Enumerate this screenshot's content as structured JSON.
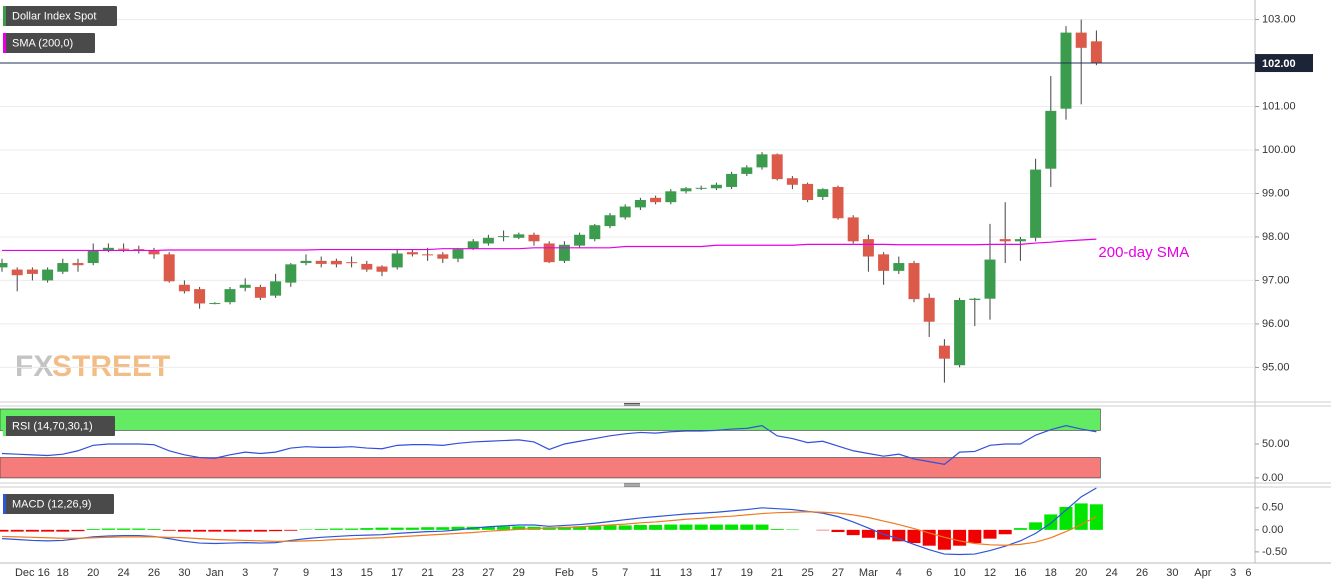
{
  "x_axis": {
    "categories": [
      null,
      null,
      "Dec 16",
      null,
      "18",
      null,
      "20",
      null,
      "24",
      null,
      "26",
      null,
      "30",
      null,
      "Jan",
      null,
      "3",
      null,
      "7",
      null,
      "9",
      null,
      "13",
      null,
      "15",
      null,
      "17",
      null,
      "21",
      null,
      "23",
      null,
      "27",
      null,
      "29",
      null,
      null,
      "Feb",
      null,
      "5",
      null,
      "7",
      null,
      "11",
      null,
      "13",
      null,
      "17",
      null,
      "19",
      null,
      "21",
      null,
      "25",
      null,
      "27",
      null,
      "Mar",
      null,
      "4",
      null,
      "6",
      null,
      "10",
      null,
      "12",
      null,
      "16",
      null,
      "18",
      null,
      "20",
      null,
      "24",
      null,
      "26",
      null,
      "30",
      null,
      "Apr",
      null,
      "3",
      "6"
    ]
  },
  "watermark": {
    "fx": "FX",
    "street": "STREET"
  },
  "chart_data": [
    {
      "type": "candlestick",
      "title": "Dollar Index Spot",
      "up_color": "#3c9c4e",
      "down_color": "#dc5a4a",
      "open": [
        97.3,
        97.25,
        97.25,
        97.0,
        97.2,
        97.4,
        97.4,
        97.7,
        97.73,
        97.72,
        97.68,
        97.6,
        96.9,
        96.8,
        96.47,
        96.5,
        96.83,
        96.85,
        96.65,
        96.95,
        97.4,
        97.45,
        97.45,
        97.42,
        97.38,
        97.32,
        97.3,
        97.65,
        97.6,
        97.6,
        97.5,
        97.73,
        97.85,
        98.0,
        97.98,
        98.05,
        97.85,
        97.45,
        97.8,
        97.95,
        98.25,
        98.45,
        98.68,
        98.9,
        98.8,
        99.05,
        99.12,
        99.12,
        99.15,
        99.45,
        99.6,
        99.9,
        99.35,
        99.22,
        98.92,
        99.15,
        98.45,
        97.95,
        97.6,
        97.22,
        97.4,
        96.6,
        95.5,
        95.05,
        96.55,
        96.58,
        97.95,
        97.9,
        97.98,
        99.57,
        100.95,
        102.7,
        102.5
      ],
      "high": [
        97.5,
        97.3,
        97.3,
        97.3,
        97.5,
        97.5,
        97.85,
        97.85,
        97.85,
        97.8,
        97.75,
        97.65,
        97.0,
        96.85,
        96.5,
        96.85,
        97.05,
        96.9,
        97.15,
        97.4,
        97.6,
        97.55,
        97.5,
        97.55,
        97.45,
        97.35,
        97.7,
        97.7,
        97.75,
        97.65,
        97.75,
        97.95,
        98.05,
        98.15,
        98.1,
        98.1,
        97.9,
        97.9,
        98.1,
        98.3,
        98.55,
        98.75,
        98.9,
        98.95,
        99.1,
        99.15,
        99.18,
        99.25,
        99.5,
        99.65,
        99.95,
        99.92,
        99.4,
        99.25,
        99.12,
        99.18,
        98.5,
        98.05,
        97.65,
        97.55,
        97.45,
        96.7,
        95.65,
        96.6,
        96.6,
        98.3,
        98.8,
        98.0,
        99.8,
        101.7,
        102.85,
        103.0,
        102.75
      ],
      "low": [
        97.2,
        96.75,
        97.0,
        96.95,
        97.15,
        97.2,
        97.35,
        97.65,
        97.65,
        97.62,
        97.5,
        96.95,
        96.7,
        96.35,
        96.45,
        96.45,
        96.75,
        96.55,
        96.6,
        96.85,
        97.35,
        97.3,
        97.3,
        97.3,
        97.2,
        97.1,
        97.25,
        97.55,
        97.45,
        97.4,
        97.42,
        97.7,
        97.8,
        97.9,
        97.95,
        97.8,
        97.4,
        97.4,
        97.75,
        97.9,
        98.2,
        98.4,
        98.62,
        98.75,
        98.75,
        99.0,
        99.08,
        99.08,
        99.1,
        99.4,
        99.55,
        99.3,
        99.1,
        98.8,
        98.85,
        98.4,
        97.85,
        97.2,
        96.9,
        97.15,
        96.5,
        95.7,
        94.65,
        95.0,
        95.95,
        96.1,
        97.4,
        97.45,
        97.9,
        99.15,
        100.7,
        101.05,
        101.95
      ],
      "close": [
        97.4,
        97.12,
        97.15,
        97.25,
        97.4,
        97.35,
        97.7,
        97.75,
        97.72,
        97.7,
        97.6,
        96.98,
        96.75,
        96.47,
        96.48,
        96.8,
        96.9,
        96.6,
        96.98,
        97.37,
        97.45,
        97.38,
        97.37,
        97.41,
        97.25,
        97.2,
        97.62,
        97.6,
        97.58,
        97.5,
        97.72,
        97.9,
        97.98,
        98.02,
        98.06,
        97.9,
        97.42,
        97.82,
        98.05,
        98.27,
        98.5,
        98.7,
        98.85,
        98.8,
        99.05,
        99.12,
        99.13,
        99.2,
        99.45,
        99.6,
        99.9,
        99.33,
        99.2,
        98.85,
        99.1,
        98.43,
        97.9,
        97.55,
        97.22,
        97.4,
        96.57,
        96.05,
        95.2,
        96.55,
        96.58,
        97.48,
        97.9,
        97.95,
        99.55,
        100.9,
        102.7,
        102.35,
        102.0
      ],
      "sma": {
        "name": "SMA (200,0)",
        "color": "#e600e6",
        "annotation": "200-day SMA",
        "values": [
          97.69,
          97.69,
          97.69,
          97.69,
          97.69,
          97.69,
          97.69,
          97.69,
          97.69,
          97.69,
          97.69,
          97.7,
          97.7,
          97.7,
          97.7,
          97.7,
          97.7,
          97.7,
          97.7,
          97.7,
          97.7,
          97.71,
          97.71,
          97.71,
          97.71,
          97.71,
          97.71,
          97.71,
          97.71,
          97.73,
          97.73,
          97.73,
          97.73,
          97.73,
          97.73,
          97.75,
          97.75,
          97.75,
          97.75,
          97.75,
          97.75,
          97.78,
          97.78,
          97.78,
          97.78,
          97.78,
          97.78,
          97.81,
          97.81,
          97.81,
          97.81,
          97.81,
          97.81,
          97.83,
          97.83,
          97.83,
          97.83,
          97.83,
          97.83,
          97.82,
          97.82,
          97.82,
          97.82,
          97.82,
          97.82,
          97.83,
          97.83,
          97.83,
          97.86,
          97.88,
          97.91,
          97.93,
          97.95
        ]
      },
      "last_price": {
        "value": 102,
        "label": "102.00"
      },
      "ylim": [
        94.25,
        103.45
      ],
      "yticks": [
        {
          "value": 95,
          "label": "95.00"
        },
        {
          "value": 96,
          "label": "96.00"
        },
        {
          "value": 97,
          "label": "97.00"
        },
        {
          "value": 98,
          "label": "98.00"
        },
        {
          "value": 99,
          "label": "99.00"
        },
        {
          "value": 100,
          "label": "100.00"
        },
        {
          "value": 101,
          "label": "101.00"
        },
        {
          "value": 102,
          "label": "102.00"
        },
        {
          "value": 103,
          "label": "103.00"
        }
      ],
      "grid": true
    },
    {
      "type": "rsi",
      "title": "RSI (14,70,30,1)",
      "color": "#3550d8",
      "overbought": 70,
      "oversold": 30,
      "overbought_color": "#63ec63",
      "oversold_color": "#f67c7c",
      "values": [
        36,
        35,
        34,
        33,
        35,
        40,
        48,
        50,
        50,
        50,
        49,
        40,
        34,
        30,
        29,
        34,
        38,
        36,
        38,
        44,
        46,
        45,
        45,
        46,
        44,
        43,
        48,
        49,
        49,
        48,
        51,
        53,
        54,
        55,
        56,
        53,
        42,
        50,
        54,
        58,
        62,
        65,
        67,
        66,
        68,
        69,
        69,
        70,
        72,
        73,
        77,
        62,
        58,
        52,
        54,
        47,
        40,
        36,
        32,
        35,
        28,
        24,
        20,
        38,
        39,
        48,
        50,
        50,
        63,
        71,
        77,
        72,
        68
      ],
      "ylim": [
        -6,
        103
      ],
      "yticks": [
        {
          "value": 0,
          "label": "0.00"
        },
        {
          "value": 50,
          "label": "50.00"
        }
      ]
    },
    {
      "type": "macd",
      "title": "MACD (12,26,9)",
      "series": [
        {
          "name": "MACD",
          "color": "#2d55d8",
          "values": [
            -0.2,
            -0.22,
            -0.24,
            -0.25,
            -0.24,
            -0.2,
            -0.16,
            -0.14,
            -0.13,
            -0.13,
            -0.15,
            -0.2,
            -0.26,
            -0.3,
            -0.31,
            -0.3,
            -0.29,
            -0.3,
            -0.29,
            -0.24,
            -0.2,
            -0.17,
            -0.15,
            -0.13,
            -0.12,
            -0.11,
            -0.08,
            -0.06,
            -0.04,
            -0.03,
            0.0,
            0.04,
            0.07,
            0.09,
            0.11,
            0.11,
            0.08,
            0.1,
            0.12,
            0.15,
            0.19,
            0.23,
            0.27,
            0.3,
            0.33,
            0.36,
            0.38,
            0.4,
            0.43,
            0.46,
            0.5,
            0.48,
            0.46,
            0.42,
            0.38,
            0.3,
            0.18,
            0.04,
            -0.1,
            -0.2,
            -0.33,
            -0.45,
            -0.55,
            -0.56,
            -0.55,
            -0.47,
            -0.37,
            -0.25,
            -0.08,
            0.15,
            0.45,
            0.75,
            0.95
          ]
        },
        {
          "name": "Signal",
          "color": "#f07a22",
          "values": [
            -0.15,
            -0.16,
            -0.17,
            -0.18,
            -0.19,
            -0.19,
            -0.18,
            -0.17,
            -0.16,
            -0.16,
            -0.16,
            -0.17,
            -0.18,
            -0.2,
            -0.22,
            -0.23,
            -0.24,
            -0.25,
            -0.26,
            -0.26,
            -0.25,
            -0.24,
            -0.22,
            -0.21,
            -0.19,
            -0.18,
            -0.16,
            -0.14,
            -0.12,
            -0.1,
            -0.08,
            -0.06,
            -0.03,
            -0.01,
            0.01,
            0.03,
            0.04,
            0.05,
            0.07,
            0.09,
            0.11,
            0.13,
            0.16,
            0.18,
            0.21,
            0.24,
            0.26,
            0.29,
            0.31,
            0.34,
            0.37,
            0.39,
            0.4,
            0.41,
            0.4,
            0.38,
            0.34,
            0.28,
            0.2,
            0.12,
            0.03,
            -0.07,
            -0.17,
            -0.25,
            -0.31,
            -0.34,
            -0.35,
            -0.33,
            -0.28,
            -0.18,
            -0.04,
            0.12,
            0.3
          ]
        }
      ],
      "histogram": {
        "up_color": "#00e600",
        "down_color": "#f00000",
        "values": [
          -0.04,
          -0.04,
          -0.04,
          -0.04,
          -0.04,
          -0.03,
          0.02,
          0.03,
          0.03,
          0.03,
          0.02,
          -0.02,
          -0.04,
          -0.04,
          -0.04,
          -0.04,
          -0.04,
          -0.04,
          -0.03,
          -0.02,
          0.01,
          0.02,
          0.03,
          0.03,
          0.04,
          0.05,
          0.05,
          0.05,
          0.06,
          0.06,
          0.07,
          0.07,
          0.07,
          0.08,
          0.08,
          0.07,
          0.06,
          0.07,
          0.08,
          0.09,
          0.1,
          0.1,
          0.11,
          0.11,
          0.12,
          0.12,
          0.12,
          0.12,
          0.12,
          0.12,
          0.12,
          0.02,
          0.01,
          0.0,
          -0.01,
          -0.05,
          -0.12,
          -0.18,
          -0.22,
          -0.26,
          -0.3,
          -0.36,
          -0.45,
          -0.36,
          -0.3,
          -0.2,
          -0.1,
          0.04,
          0.17,
          0.35,
          0.52,
          0.6,
          0.58
        ]
      },
      "ylim": [
        -0.73,
        0.95
      ],
      "yticks": [
        {
          "value": -0.5,
          "label": "-0.50"
        },
        {
          "value": 0,
          "label": "0.00"
        },
        {
          "value": 0.5,
          "label": "0.50"
        }
      ]
    }
  ]
}
